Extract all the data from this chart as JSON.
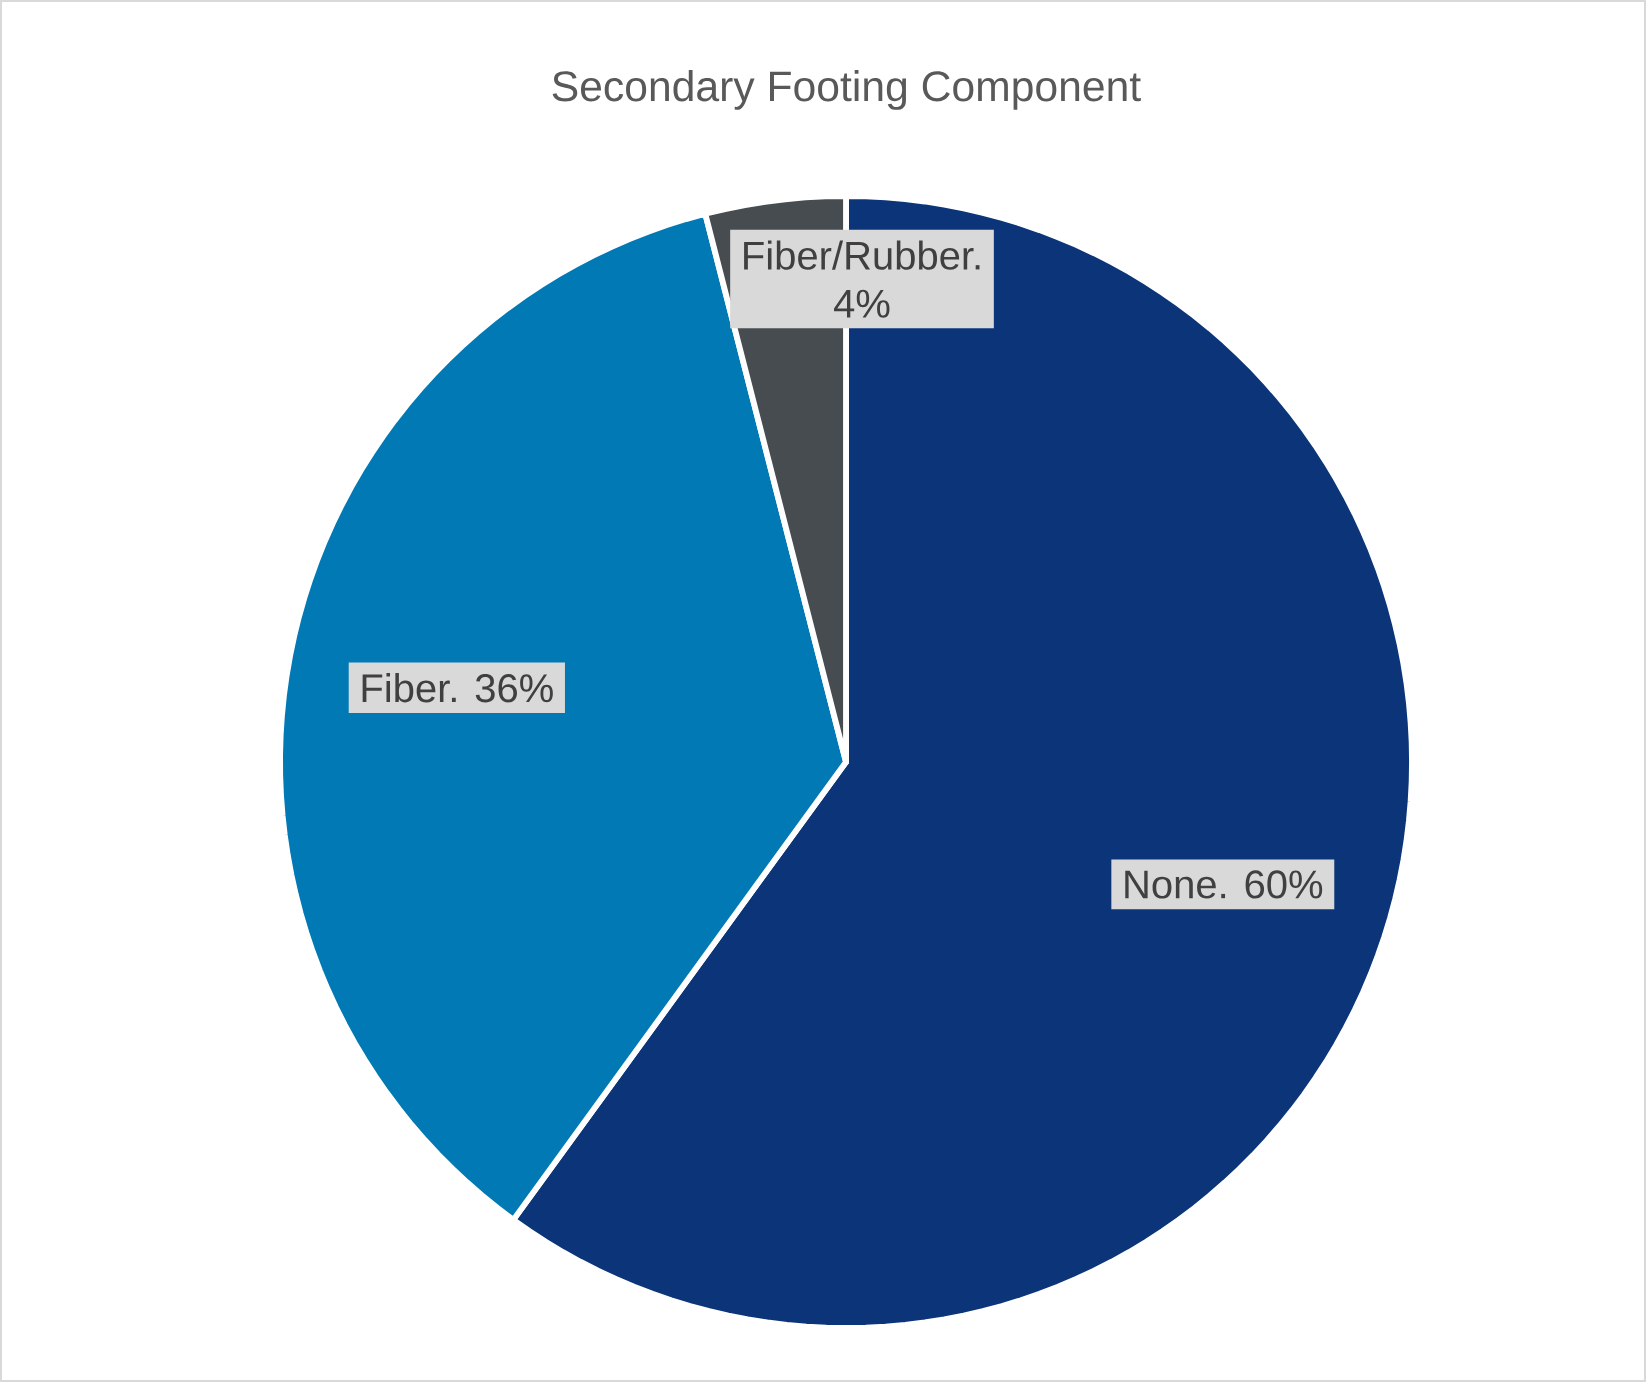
{
  "chart_data": {
    "type": "pie",
    "title": "Secondary Footing Component",
    "categories": [
      "None.",
      "Fiber.",
      "Fiber/Rubber."
    ],
    "values": [
      60,
      36,
      4
    ],
    "colors": [
      "#0b3578",
      "#0079b5",
      "#474c50"
    ],
    "value_labels": [
      "60%",
      "36%",
      "4%"
    ]
  }
}
